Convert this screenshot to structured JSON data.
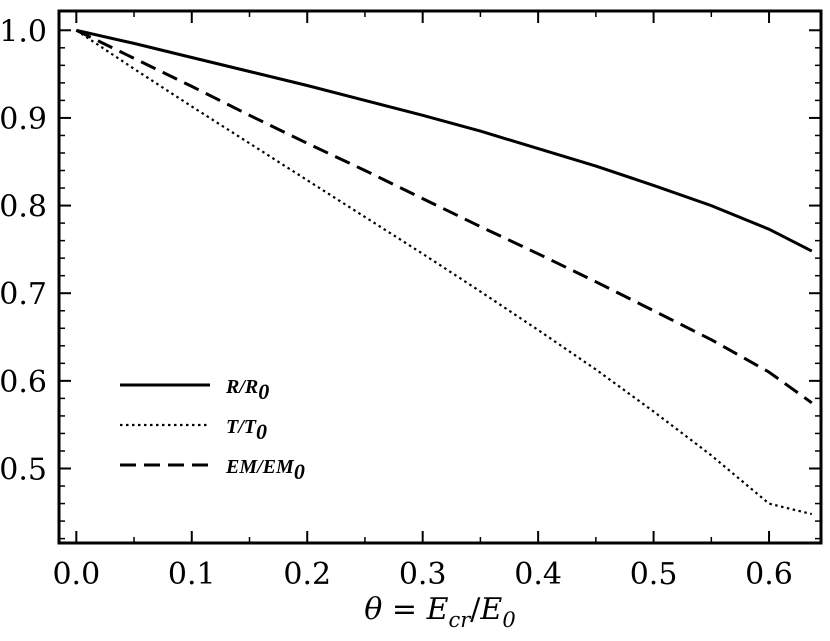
{
  "chart_data": {
    "type": "line",
    "title": "",
    "xlabel": {
      "symbol": "θ",
      "equals": " = ",
      "num": "E",
      "num_sub": "cr",
      "slash": "/",
      "den": "E",
      "den_sub": "0"
    },
    "ylabel": "",
    "xlim": [
      -0.015,
      0.645
    ],
    "ylim": [
      0.415,
      1.022
    ],
    "xticks": [
      0.0,
      0.1,
      0.2,
      0.3,
      0.4,
      0.5,
      0.6
    ],
    "xtick_labels": [
      "0.0",
      "0.1",
      "0.2",
      "0.3",
      "0.4",
      "0.5",
      "0.6"
    ],
    "yticks": [
      0.5,
      0.6,
      0.7,
      0.8,
      0.9,
      1.0
    ],
    "ytick_labels": [
      "0.5",
      "0.6",
      "0.7",
      "0.8",
      "0.9",
      "1.0"
    ],
    "grid": false,
    "legend_position": "lower-left",
    "series": [
      {
        "name": "R/R0",
        "label_main": "R/R",
        "label_sub": "0",
        "style": "solid",
        "color": "#000000",
        "x": [
          0.0,
          0.05,
          0.1,
          0.15,
          0.2,
          0.25,
          0.3,
          0.35,
          0.4,
          0.45,
          0.5,
          0.55,
          0.6,
          0.637
        ],
        "y": [
          1.0,
          0.985,
          0.969,
          0.953,
          0.937,
          0.92,
          0.903,
          0.885,
          0.865,
          0.845,
          0.823,
          0.8,
          0.773,
          0.748
        ]
      },
      {
        "name": "T/T0",
        "label_main": "T/T",
        "label_sub": "0",
        "style": "dotted",
        "color": "#000000",
        "x": [
          0.0,
          0.05,
          0.1,
          0.15,
          0.2,
          0.25,
          0.3,
          0.35,
          0.4,
          0.45,
          0.5,
          0.55,
          0.6,
          0.637
        ],
        "y": [
          1.0,
          0.956,
          0.913,
          0.871,
          0.829,
          0.787,
          0.745,
          0.702,
          0.658,
          0.613,
          0.565,
          0.515,
          0.46,
          0.448
        ]
      },
      {
        "name": "EM/EM0",
        "label_main": "EM/EM",
        "label_sub": "0",
        "style": "dashed",
        "color": "#000000",
        "x": [
          0.0,
          0.05,
          0.1,
          0.15,
          0.2,
          0.25,
          0.3,
          0.35,
          0.4,
          0.45,
          0.5,
          0.55,
          0.6,
          0.637
        ],
        "y": [
          1.0,
          0.968,
          0.936,
          0.903,
          0.871,
          0.84,
          0.808,
          0.776,
          0.745,
          0.713,
          0.68,
          0.647,
          0.61,
          0.575
        ]
      }
    ]
  }
}
